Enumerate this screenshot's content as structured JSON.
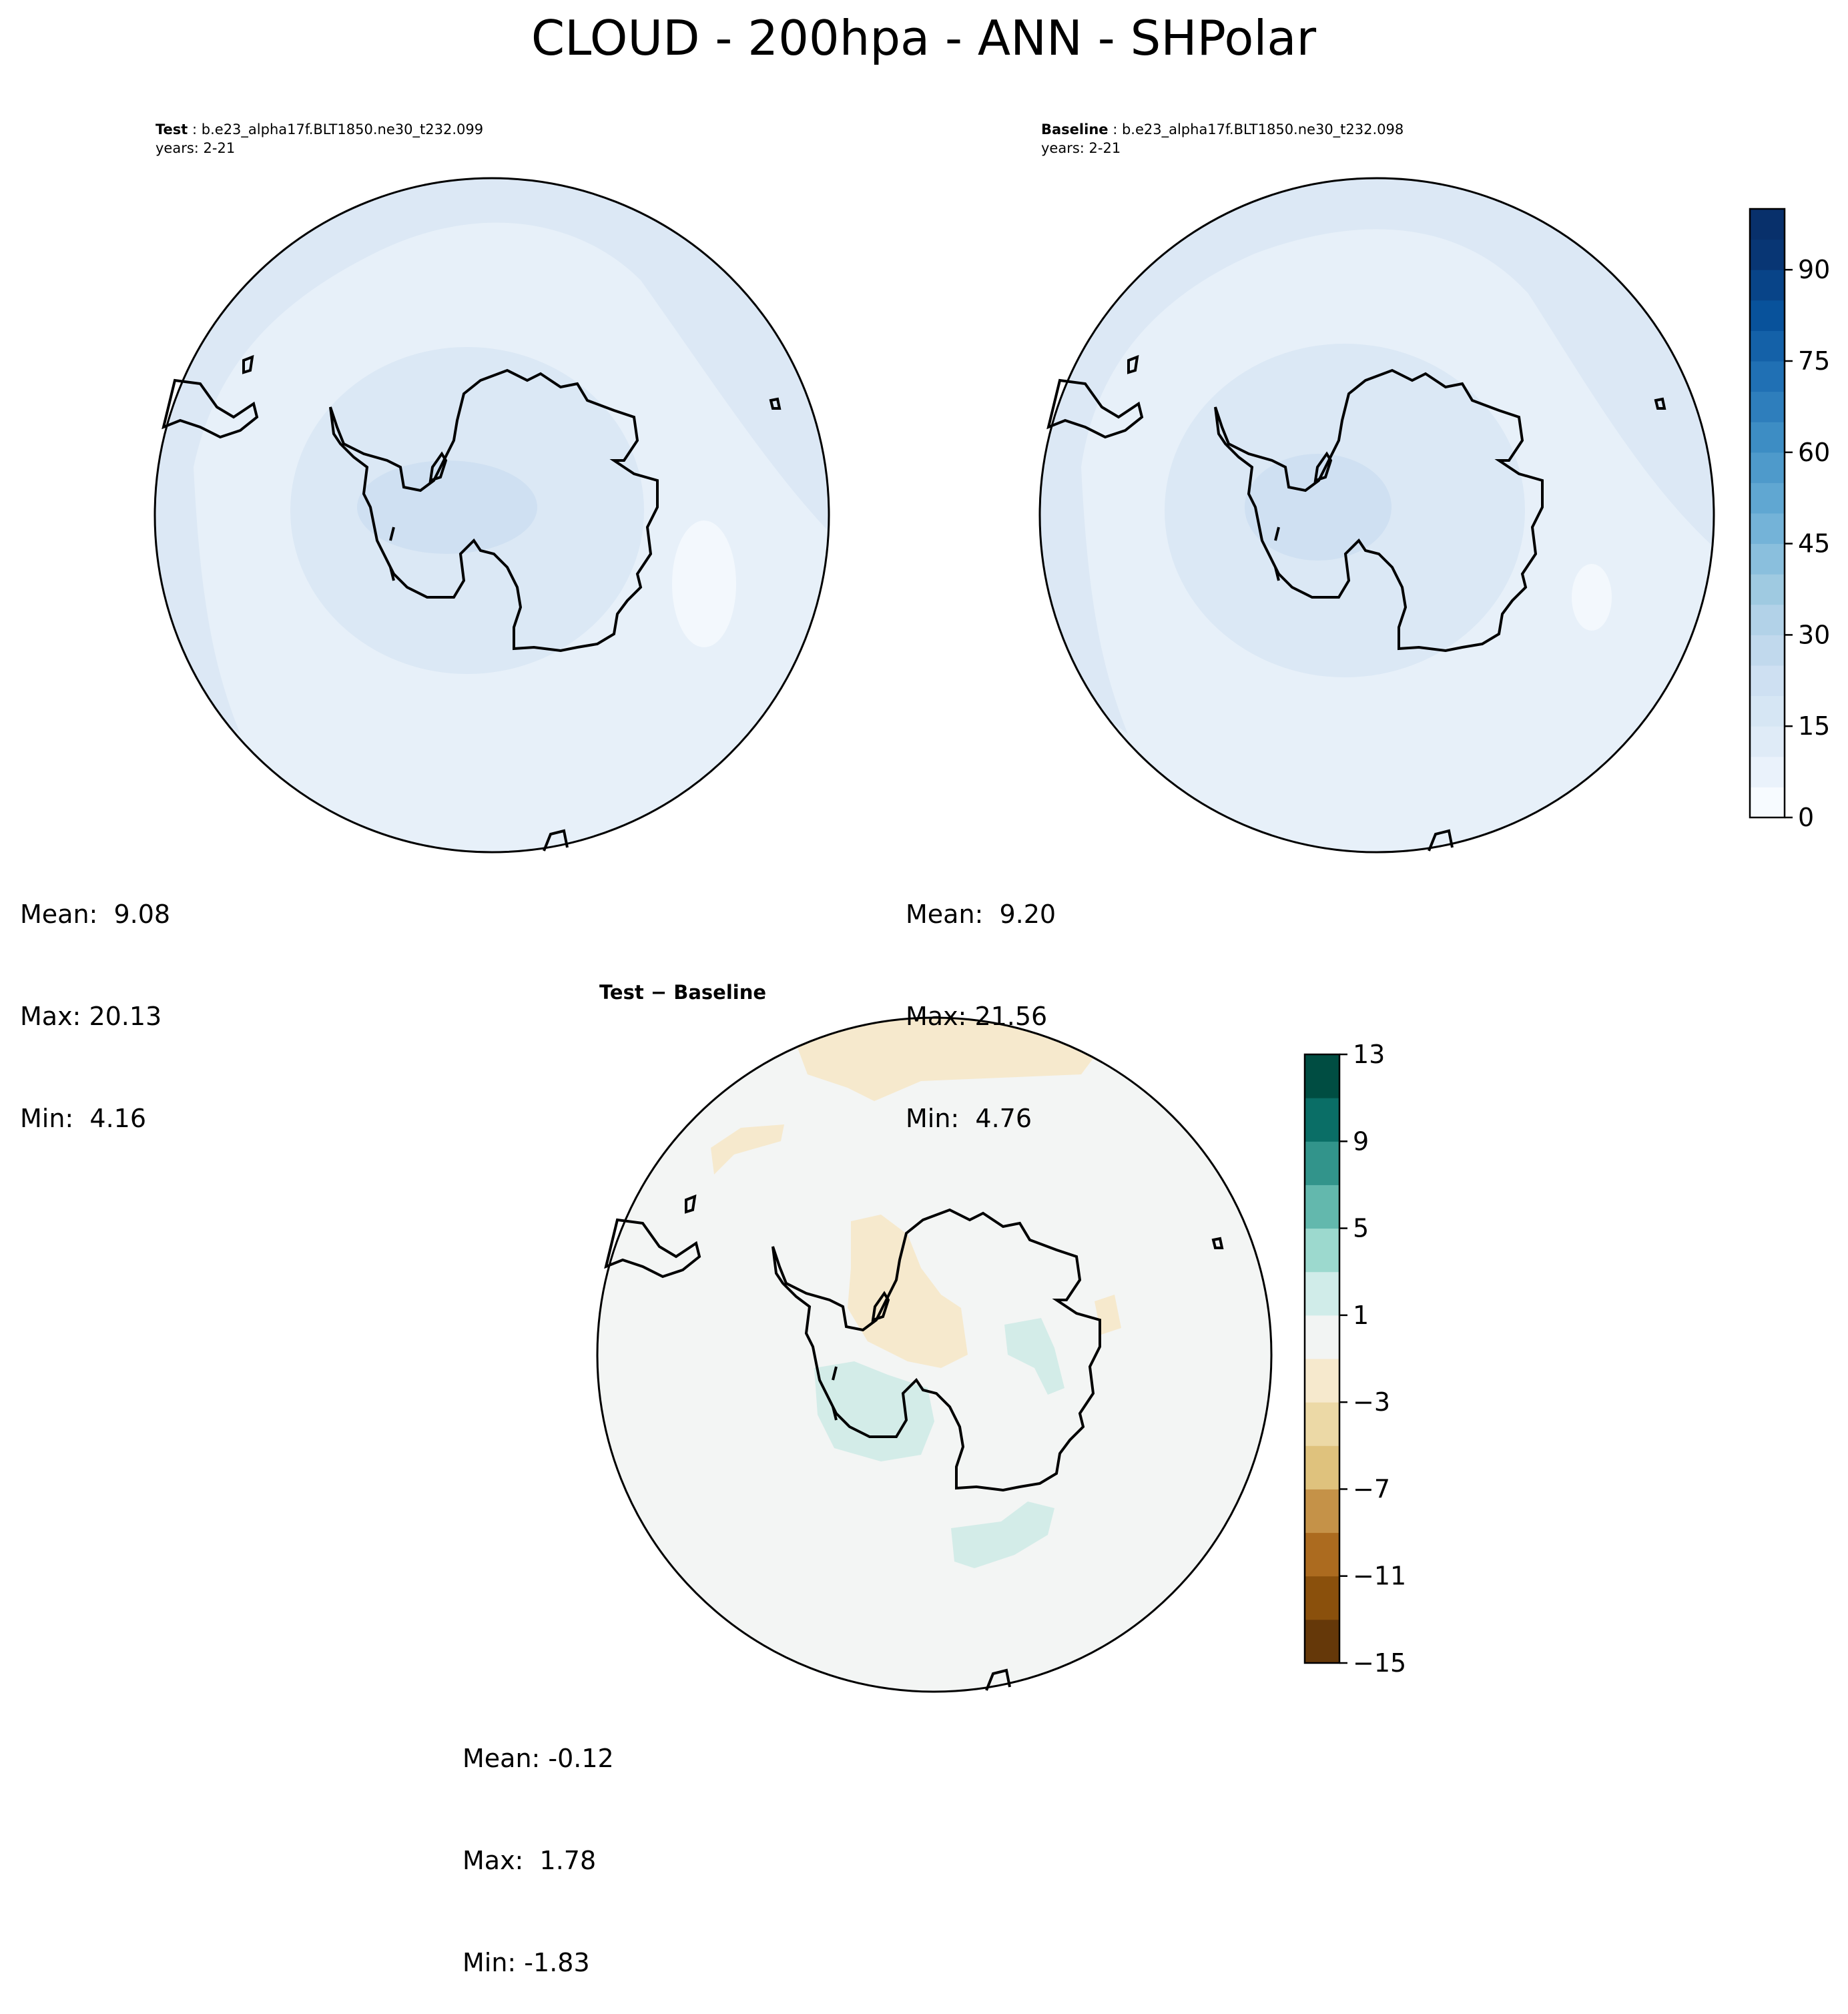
{
  "title": "CLOUD - 200hpa - ANN - SHPolar",
  "panels": [
    {
      "label": "Test",
      "case": "b.e23_alpha17f.BLT1850.ne30_t232.099",
      "years": "years: 2-21",
      "stats": {
        "mean": "Mean:  9.08",
        "max": "Max: 20.13",
        "min": "Min:  4.16"
      }
    },
    {
      "label": "Baseline",
      "case": "b.e23_alpha17f.BLT1850.ne30_t232.098",
      "years": "years: 2-21",
      "stats": {
        "mean": "Mean:  9.20",
        "max": "Max: 21.56",
        "min": "Min:  4.76"
      }
    },
    {
      "label": "Test − Baseline",
      "stats": {
        "mean": "Mean: -0.12",
        "max": "Max:  1.78",
        "min": "Min: -1.83"
      }
    }
  ],
  "colorbars": {
    "main": {
      "colormap": "Blues",
      "range": [
        0,
        100
      ],
      "levels": [
        0,
        5,
        10,
        15,
        20,
        25,
        30,
        35,
        40,
        45,
        50,
        55,
        60,
        65,
        70,
        75,
        80,
        85,
        90,
        95,
        100
      ],
      "tick_values": [
        0,
        15,
        30,
        45,
        60,
        75,
        90
      ],
      "tick_labels": [
        "0",
        "15",
        "30",
        "45",
        "60",
        "75",
        "90"
      ],
      "colors": [
        "#f7fbff",
        "#eaf2fb",
        "#dfebf7",
        "#d6e6f4",
        "#cee0f2",
        "#c1d9ed",
        "#b2d2e8",
        "#9fcae1",
        "#8abfdd",
        "#74b3d8",
        "#60a7d2",
        "#4e9acb",
        "#3d8dc4",
        "#2e7ebc",
        "#2070b4",
        "#1461a8",
        "#08529b",
        "#084488",
        "#083674",
        "#08306b"
      ]
    },
    "diff": {
      "colormap": "BrBG",
      "range": [
        -15,
        13
      ],
      "levels": [
        -15,
        -13,
        -11,
        -9,
        -7,
        -5,
        -3,
        -1,
        1,
        3,
        5,
        7,
        9,
        11,
        13
      ],
      "tick_values": [
        -15,
        -11,
        -7,
        -3,
        1,
        5,
        9,
        13
      ],
      "tick_labels": [
        "−15",
        "−11",
        "−7",
        "−3",
        "1",
        "5",
        "9",
        "13"
      ],
      "colors": [
        "#653809",
        "#8a500c",
        "#ac6b1f",
        "#c59248",
        "#dfc27d",
        "#ecd9a6",
        "#f6e9cd",
        "#f2f4f3",
        "#d0ece9",
        "#9cd9ce",
        "#63b8ad",
        "#32948b",
        "#0a6e66",
        "#004d42"
      ]
    }
  },
  "map_colors": {
    "ocean_main": "#e7f0f9",
    "interior_main": "#dbe8f5",
    "core_main": "#cfe0f2",
    "min_main": "#f3f8fd",
    "ocean_diff": "#f3f5f4",
    "neg_diff": "#f6e9cd",
    "pos_diff": "#d3ece8"
  }
}
